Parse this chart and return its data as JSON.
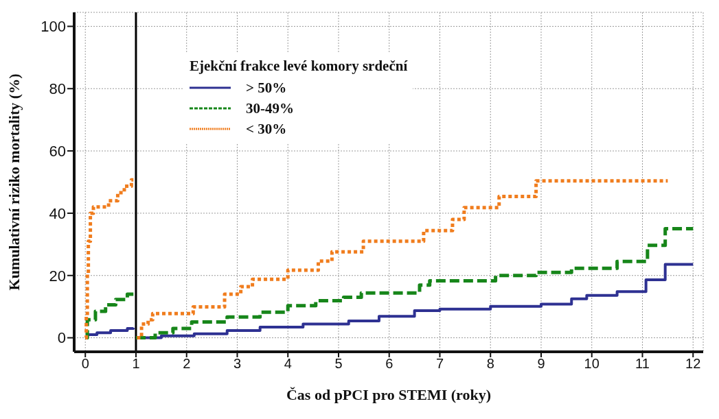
{
  "chart_data": {
    "type": "step",
    "xlabel": "Čas od pPCI pro STEMI (roky)",
    "ylabel": "Kumulativní riziko mortality (%)",
    "legend_title": "Ejekční frakce levé komory srdeční",
    "xlim": [
      -0.22,
      12.2
    ],
    "ylim": [
      -4.5,
      104.5
    ],
    "xticks": [
      0,
      1,
      2,
      3,
      4,
      5,
      6,
      7,
      8,
      9,
      10,
      11,
      12
    ],
    "yticks": [
      0,
      20,
      40,
      60,
      80,
      100
    ],
    "grid": true,
    "legend": "top",
    "ref_lines": [
      {
        "axis": "x",
        "value": 1,
        "color": "#000000"
      }
    ],
    "series": [
      {
        "name": "> 50%",
        "color": "#2e3192",
        "line_style": "solid",
        "x": [
          0,
          0.04,
          0.23,
          0.5,
          0.83,
          0.95,
          0.97,
          1.0,
          1.5,
          2.15,
          2.8,
          3.45,
          4.3,
          5.2,
          5.8,
          6.5,
          7.0,
          8.0,
          9.0,
          9.6,
          9.9,
          10.5,
          11.07,
          11.45,
          12.0
        ],
        "values": [
          0,
          1.0,
          1.6,
          2.3,
          3.0,
          3.2,
          null,
          0,
          0.6,
          1.3,
          2.3,
          3.4,
          4.4,
          5.4,
          6.9,
          8.7,
          9.2,
          10.1,
          10.8,
          12.5,
          13.6,
          14.8,
          18.6,
          23.6,
          23.6
        ]
      },
      {
        "name": "30-49%",
        "color": "#17861a",
        "line_style": "dashed",
        "x": [
          0,
          0.04,
          0.2,
          0.4,
          0.6,
          0.83,
          0.95,
          0.97,
          1.0,
          1.38,
          1.73,
          2.1,
          2.8,
          3.45,
          4.0,
          4.55,
          5.1,
          5.45,
          6.6,
          6.8,
          8.1,
          8.9,
          9.6,
          10.5,
          11.1,
          11.45,
          12.0
        ],
        "values": [
          0,
          5.8,
          8.5,
          10.6,
          12.3,
          14.0,
          14.0,
          null,
          0,
          1.6,
          3.0,
          5.1,
          6.7,
          8.2,
          10.3,
          11.9,
          13.0,
          14.4,
          16.9,
          18.3,
          20,
          21,
          22.3,
          24.5,
          29.7,
          35,
          35
        ]
      },
      {
        "name": "< 30%",
        "color": "#f07d1e",
        "line_style": "dotted",
        "x": [
          0,
          0.02,
          0.04,
          0.06,
          0.1,
          0.16,
          0.46,
          0.64,
          0.77,
          0.91,
          0.95,
          0.97,
          1.02,
          1.11,
          1.24,
          1.33,
          2.13,
          2.75,
          3.07,
          3.3,
          4.0,
          4.6,
          4.87,
          5.49,
          6.68,
          7.25,
          7.48,
          8.17,
          8.9,
          11.5
        ],
        "values": [
          0,
          7.2,
          20.8,
          31,
          40,
          42,
          44,
          46.6,
          48.7,
          50.7,
          50.7,
          null,
          0,
          4.4,
          5.8,
          7.8,
          9.9,
          14,
          16.4,
          18.8,
          21.7,
          24.6,
          27.6,
          31,
          34.4,
          38,
          41.8,
          45.4,
          50.4,
          50.4
        ]
      }
    ]
  }
}
